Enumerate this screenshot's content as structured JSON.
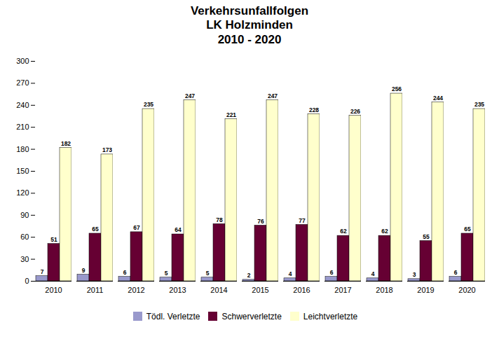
{
  "chart_data": {
    "type": "bar",
    "title": "Verkehrsunfallfolgen\nLK Holzminden\n2010 - 2020",
    "categories": [
      "2010",
      "2011",
      "2012",
      "2013",
      "2014",
      "2015",
      "2016",
      "2017",
      "2018",
      "2019",
      "2020"
    ],
    "series": [
      {
        "name": "Tödl. Verletzte",
        "color": "#9999cc",
        "values": [
          7,
          9,
          6,
          5,
          5,
          2,
          4,
          6,
          4,
          3,
          6
        ]
      },
      {
        "name": "Schwerverletzte",
        "color": "#660033",
        "values": [
          51,
          65,
          67,
          64,
          78,
          76,
          77,
          62,
          62,
          55,
          65
        ]
      },
      {
        "name": "Leichtverletzte",
        "color": "#ffffcc",
        "values": [
          182,
          173,
          235,
          247,
          221,
          247,
          228,
          226,
          256,
          244,
          235
        ]
      }
    ],
    "ylim": [
      0,
      300
    ],
    "yticks": [
      0,
      30,
      60,
      90,
      120,
      150,
      180,
      210,
      240,
      270,
      300
    ],
    "grid": false,
    "legend": "bottom",
    "data_labels": true
  }
}
